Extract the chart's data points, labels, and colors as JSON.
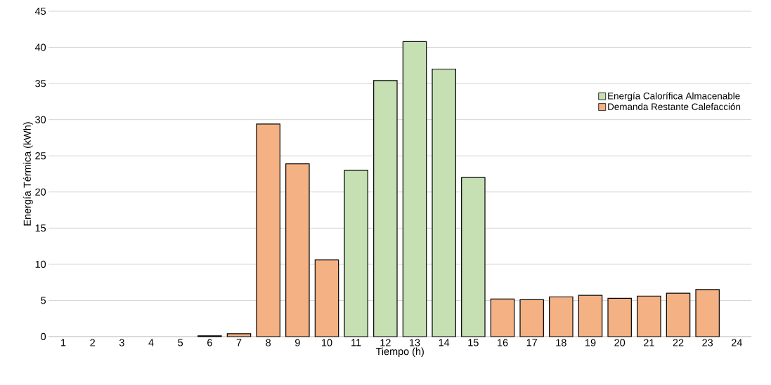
{
  "chart_data": {
    "type": "bar",
    "xlabel": "Tiempo (h)",
    "ylabel": "Energía Térmica (kWh)",
    "categories": [
      "1",
      "2",
      "3",
      "4",
      "5",
      "6",
      "7",
      "8",
      "9",
      "10",
      "11",
      "12",
      "13",
      "14",
      "15",
      "16",
      "17",
      "18",
      "19",
      "20",
      "21",
      "22",
      "23",
      "24"
    ],
    "series": [
      {
        "name": "Energía Calorífica Almacenable",
        "color": "#c6e0b4",
        "values": [
          null,
          null,
          null,
          null,
          null,
          null,
          null,
          null,
          null,
          null,
          23.0,
          35.4,
          40.8,
          37.0,
          22.0,
          null,
          null,
          null,
          null,
          null,
          null,
          null,
          null,
          null
        ]
      },
      {
        "name": "Demanda Restante Calefacción",
        "color": "#f4b183",
        "values": [
          null,
          null,
          null,
          null,
          null,
          0.1,
          0.4,
          29.4,
          23.9,
          10.6,
          null,
          null,
          null,
          null,
          null,
          5.2,
          5.1,
          5.5,
          5.7,
          5.3,
          5.6,
          6.0,
          6.5,
          null
        ]
      }
    ],
    "ylim": [
      0,
      45
    ],
    "yticks": [
      0,
      5,
      10,
      15,
      20,
      25,
      30,
      35,
      40,
      45
    ],
    "grid": "y",
    "legend": "top right"
  }
}
